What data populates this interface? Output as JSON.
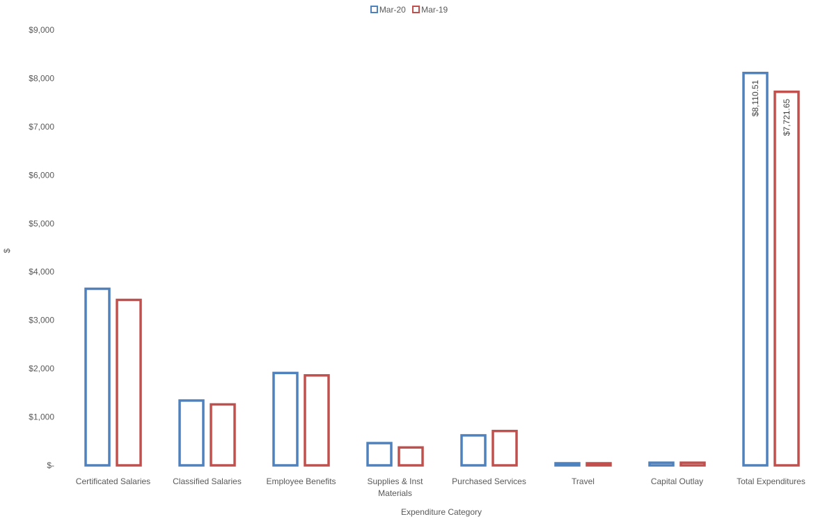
{
  "chart_data": {
    "type": "bar",
    "style": "outlined-clustered-columns",
    "xlabel": "Expenditure Category",
    "ylabel": "$",
    "ylim": [
      0,
      9000
    ],
    "yticks": [
      {
        "value": 0,
        "label": "$-"
      },
      {
        "value": 1000,
        "label": "$1,000"
      },
      {
        "value": 2000,
        "label": "$2,000"
      },
      {
        "value": 3000,
        "label": "$3,000"
      },
      {
        "value": 4000,
        "label": "$4,000"
      },
      {
        "value": 5000,
        "label": "$5,000"
      },
      {
        "value": 6000,
        "label": "$6,000"
      },
      {
        "value": 7000,
        "label": "$7,000"
      },
      {
        "value": 8000,
        "label": "$8,000"
      },
      {
        "value": 9000,
        "label": "$9,000"
      }
    ],
    "grid": false,
    "legend_position": "top-center",
    "categories": [
      [
        "Certificated Salaries"
      ],
      [
        "Classified Salaries"
      ],
      [
        "Employee Benefits"
      ],
      [
        "Supplies & Inst",
        "Materials"
      ],
      [
        "Purchased Services"
      ],
      [
        "Travel"
      ],
      [
        "Capital Outlay"
      ],
      [
        "Total Expenditures"
      ]
    ],
    "series": [
      {
        "name": "Mar-20",
        "color": "#4f81bd",
        "values": [
          3650,
          1340,
          1910,
          460,
          620,
          35,
          55,
          8110.51
        ],
        "labels": [
          null,
          null,
          null,
          null,
          null,
          null,
          null,
          "$8,110.51"
        ]
      },
      {
        "name": "Mar-19",
        "color": "#c0504d",
        "values": [
          3420,
          1260,
          1860,
          370,
          710,
          30,
          55,
          7721.65
        ],
        "labels": [
          null,
          null,
          null,
          null,
          null,
          null,
          null,
          "$7,721.65"
        ]
      }
    ]
  }
}
